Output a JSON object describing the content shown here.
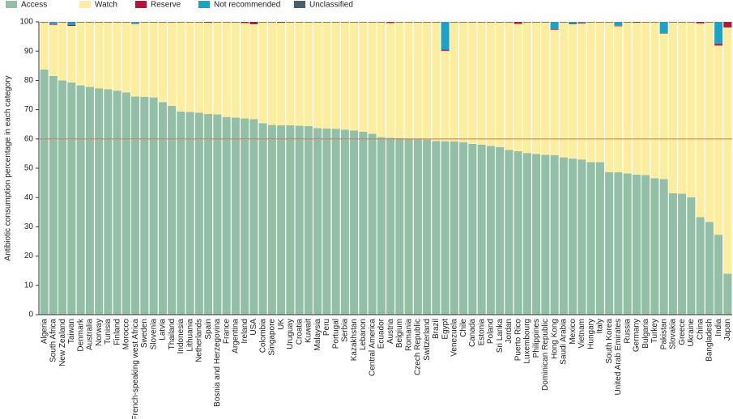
{
  "chart_data": {
    "type": "stacked_bar",
    "y_label": "Antibiotic consumption percentage in each category",
    "legend": "top-left",
    "categories": [
      "Algeria",
      "South Africa",
      "New Zealand",
      "Taiwan",
      "Denmark",
      "Australia",
      "Norway",
      "Tunisia",
      "Finland",
      "Morocco",
      "French-speaking west Africa",
      "Sweden",
      "Slovenia",
      "Latvia",
      "Thailand",
      "Indonesia",
      "Lithuania",
      "Netherlands",
      "Spain",
      "Bosnia and Herzegovina",
      "France",
      "Argentina",
      "Ireland",
      "USA",
      "Colombia",
      "Singapore",
      "UK",
      "Uruguay",
      "Croatia",
      "Kuwait",
      "Malaysia",
      "Peru",
      "Portugal",
      "Serbia",
      "Kazakhstan",
      "Lebanon",
      "Central America",
      "Ecuador",
      "Austria",
      "Belgium",
      "Romania",
      "Czech Republic",
      "Switzerland",
      "Brazil",
      "Egypt",
      "Venezuela",
      "Chile",
      "Canada",
      "Estonia",
      "Poland",
      "Sri Lanka",
      "Jordan",
      "Puerto Rico",
      "Luxembourg",
      "Philippines",
      "Dominican Republic",
      "Hong Kong",
      "Saudi Arabia",
      "Mexico",
      "Vietnam",
      "Hungary",
      "Italy",
      "South Korea",
      "United Arab Emirates",
      "Russia",
      "Germany",
      "Bulgaria",
      "Turkey",
      "Pakistan",
      "Slovakia",
      "Greece",
      "Ukraine",
      "China",
      "Bangladesh",
      "India",
      "Japan"
    ],
    "series": [
      {
        "name": "Access",
        "color": "#93bfa6",
        "values": [
          83.7,
          81.5,
          80,
          79.3,
          78.3,
          77.8,
          77.3,
          77,
          76.5,
          75.9,
          74.5,
          74.4,
          74.2,
          72.6,
          71.3,
          69.4,
          69.2,
          69,
          68.5,
          68.4,
          67.5,
          67.3,
          67,
          66.8,
          65.4,
          64.8,
          64.7,
          64.7,
          64.5,
          64.4,
          63.7,
          63.6,
          63.5,
          63.2,
          62.9,
          62.5,
          61.8,
          60.6,
          60.4,
          60.3,
          60.2,
          60.1,
          59.8,
          59.3,
          59.2,
          59.2,
          58.9,
          58.3,
          58.1,
          57.6,
          57.2,
          56.3,
          55.8,
          55.2,
          54.9,
          54.6,
          54.5,
          53.7,
          53.3,
          53,
          52.1,
          52.1,
          48.7,
          48.6,
          48.2,
          47.8,
          47.7,
          46.6,
          46.3,
          41.5,
          41.3,
          40.1,
          33.3,
          31.7,
          27.3,
          14
        ]
      },
      {
        "name": "Watch",
        "color": "#fdee9f",
        "values": [
          16.1,
          17.5,
          19.8,
          19.3,
          21.5,
          22.0,
          22.5,
          22.8,
          23.3,
          23.9,
          24.8,
          25.4,
          25.6,
          27.2,
          28.5,
          30.4,
          30.6,
          30.8,
          31.2,
          31.4,
          32.3,
          32.5,
          32.6,
          32.4,
          34.4,
          35.0,
          35.0,
          35.1,
          35.3,
          35.4,
          36.1,
          36.2,
          36.3,
          36.6,
          36.9,
          37.3,
          38.0,
          39.2,
          39.2,
          39.5,
          39.6,
          39.7,
          40.0,
          40.5,
          30.9,
          40.6,
          40.9,
          41.5,
          41.7,
          42.2,
          42.6,
          43.5,
          43.5,
          44.6,
          44.9,
          45.2,
          42.8,
          46.1,
          45.9,
          46.4,
          47.7,
          47.7,
          51.1,
          49.9,
          51.6,
          51.9,
          52.1,
          53.2,
          49.7,
          58.3,
          58.5,
          59.7,
          66.2,
          68.1,
          64.6,
          84.1
        ]
      },
      {
        "name": "Reserve",
        "color": "#b5123e",
        "values": [
          0.2,
          0.2,
          0.2,
          0.4,
          0.2,
          0.2,
          0.2,
          0.2,
          0.2,
          0.2,
          0.2,
          0.2,
          0.2,
          0.2,
          0.2,
          0.2,
          0.2,
          0.2,
          0.3,
          0.2,
          0.2,
          0.2,
          0.4,
          0.8,
          0.2,
          0.2,
          0.3,
          0.2,
          0.2,
          0.2,
          0.2,
          0.2,
          0.2,
          0.2,
          0.2,
          0.2,
          0.2,
          0.2,
          0.4,
          0.2,
          0.2,
          0.2,
          0.2,
          0.2,
          0.4,
          0.2,
          0.2,
          0.2,
          0.2,
          0.2,
          0.2,
          0.2,
          0.7,
          0.2,
          0.2,
          0.2,
          0.2,
          0.2,
          0.3,
          0.2,
          0.2,
          0.2,
          0.2,
          0.2,
          0.2,
          0.3,
          0.2,
          0.2,
          0.2,
          0.2,
          0.2,
          0.2,
          0.5,
          0.2,
          0.6,
          1.9
        ]
      },
      {
        "name": "Not recommended",
        "color": "#1aa3c8",
        "values": [
          0,
          0.8,
          0,
          0.8,
          0,
          0,
          0,
          0,
          0,
          0,
          0.5,
          0,
          0,
          0,
          0,
          0,
          0,
          0,
          0,
          0,
          0,
          0,
          0,
          0,
          0,
          0,
          0,
          0,
          0,
          0,
          0,
          0,
          0,
          0,
          0,
          0,
          0,
          0,
          0,
          0,
          0,
          0,
          0,
          0,
          9.5,
          0,
          0,
          0,
          0,
          0,
          0,
          0,
          0,
          0,
          0,
          0,
          2.5,
          0,
          0.3,
          0.4,
          0,
          0,
          0,
          1.3,
          0,
          0,
          0,
          0,
          3.8,
          0,
          0,
          0,
          0,
          0,
          7.5,
          0
        ]
      },
      {
        "name": "Unclassified",
        "color": "#4a5d6b",
        "values": [
          0,
          0,
          0,
          0.2,
          0,
          0,
          0,
          0,
          0,
          0,
          0,
          0,
          0,
          0,
          0,
          0,
          0,
          0,
          0,
          0,
          0,
          0,
          0,
          0,
          0,
          0,
          0,
          0,
          0,
          0,
          0,
          0,
          0,
          0,
          0,
          0,
          0,
          0,
          0,
          0,
          0,
          0,
          0,
          0,
          0,
          0,
          0,
          0,
          0,
          0,
          0,
          0,
          0,
          0,
          0,
          0,
          0,
          0,
          0.2,
          0,
          0,
          0,
          0,
          0,
          0,
          0,
          0,
          0,
          0,
          0,
          0,
          0,
          0,
          0,
          0,
          0
        ]
      }
    ],
    "ylim": [
      0,
      100
    ],
    "yticks": [
      0,
      10,
      20,
      30,
      40,
      50,
      60,
      70,
      80,
      90,
      100
    ],
    "reference_line": 60,
    "reference_color": "#e07a55"
  }
}
